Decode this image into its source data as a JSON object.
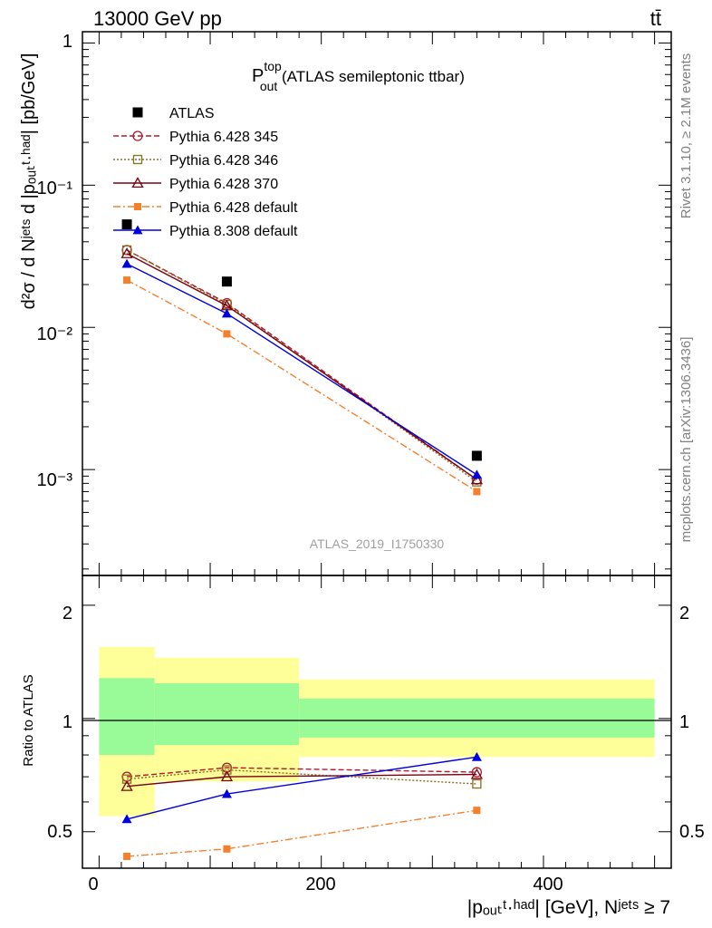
{
  "header": {
    "left": "13000 GeV pp",
    "right": "tt̄"
  },
  "side_labels": {
    "rivet": "Rivet 3.1.10, ≥ 2.1M events",
    "mcplots": "mcplots.cern.ch [arXiv:1306.3436]"
  },
  "main_panel": {
    "title_main": "P",
    "title_sup": "top",
    "title_sub": "out",
    "title_rest": " (ATLAS semileptonic ttbar)",
    "ylabel": "d²σ / d Nʲᵉᵗˢ d |pₒᵤₜᵗ·ʰᵃᵈ| [pb/GeV]",
    "analysis_id": "ATLAS_2019_I1750330",
    "ytick_labels": [
      "1",
      "10⁻¹",
      "10⁻²",
      "10⁻³"
    ]
  },
  "ratio_panel": {
    "ylabel": "Ratio to ATLAS",
    "ytick_labels": [
      "2",
      "1",
      "0.5"
    ]
  },
  "xaxis": {
    "label": "|pₒᵤₜᵗ·ʰᵃᵈ| [GeV], Nʲᵉᵗˢ ≥ 7",
    "tick_labels": [
      "0",
      "200",
      "400"
    ]
  },
  "colors": {
    "atlas": "#000000",
    "p345": "#b2182b",
    "p346": "#8c6d1f",
    "p370": "#7a0010",
    "p6def": "#f4802c",
    "p8def": "#0000dd",
    "band_inner": "#98fb98",
    "band_outer": "#ffff99"
  },
  "chart_data": {
    "type": "scatter",
    "x_bin_edges": [
      0,
      50,
      180,
      500
    ],
    "x": [
      25,
      115,
      340
    ],
    "xlim": [
      -15,
      515
    ],
    "ylim_main": [
      0.00018,
      1.2
    ],
    "yscale_main": "log",
    "ylim_ratio": [
      0.4,
      2.4
    ],
    "yscale_ratio": "log",
    "legend_position": "top-left",
    "series": [
      {
        "name": "ATLAS",
        "values": [
          0.053,
          0.021,
          0.00125
        ],
        "color_key": "atlas",
        "marker": "filled-square",
        "dash": "none"
      },
      {
        "name": "Pythia 6.428 345",
        "values": [
          0.035,
          0.0148,
          0.00085
        ],
        "ratio": [
          0.7,
          0.74,
          0.72
        ],
        "color_key": "p345",
        "marker": "open-circle",
        "dash": "6,3"
      },
      {
        "name": "Pythia 6.428 346",
        "values": [
          0.035,
          0.0145,
          0.00082
        ],
        "ratio": [
          0.69,
          0.73,
          0.67
        ],
        "color_key": "p346",
        "marker": "open-square",
        "dash": "2,2"
      },
      {
        "name": "Pythia 6.428 370",
        "values": [
          0.033,
          0.0142,
          0.00085
        ],
        "ratio": [
          0.66,
          0.7,
          0.71
        ],
        "color_key": "p370",
        "marker": "open-triangle",
        "dash": "none"
      },
      {
        "name": "Pythia 6.428 default",
        "values": [
          0.0215,
          0.009,
          0.0007
        ],
        "ratio": [
          0.43,
          0.45,
          0.57
        ],
        "color_key": "p6def",
        "marker": "filled-square-small",
        "dash": "8,3,2,3"
      },
      {
        "name": "Pythia 8.308 default",
        "values": [
          0.028,
          0.0125,
          0.00092
        ],
        "ratio": [
          0.54,
          0.63,
          0.79
        ],
        "color_key": "p8def",
        "marker": "filled-triangle",
        "dash": "none"
      }
    ],
    "band_inner": [
      [
        0.8,
        1.28
      ],
      [
        0.85,
        1.24
      ],
      [
        0.89,
        1.13
      ]
    ],
    "band_outer": [
      [
        0.55,
        1.55
      ],
      [
        0.68,
        1.45
      ],
      [
        0.79,
        1.27
      ]
    ]
  }
}
